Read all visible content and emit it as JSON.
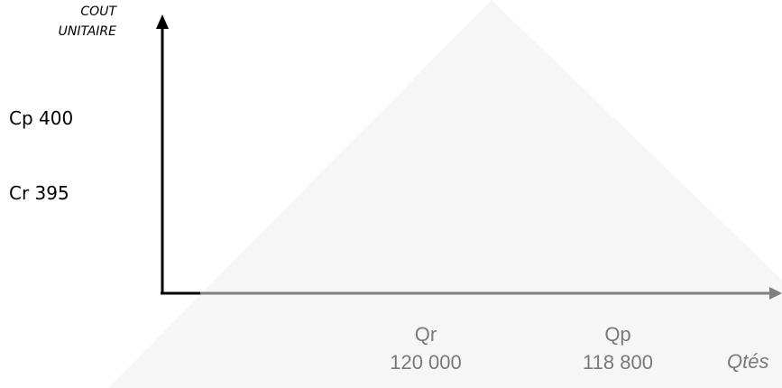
{
  "y_axis": {
    "label_line1": "COUT",
    "label_line2": "UNITAIRE",
    "ticks": [
      {
        "name": "Cp",
        "value": "400",
        "text": "Cp 400"
      },
      {
        "name": "Cr",
        "value": "395",
        "text": "Cr 395"
      }
    ]
  },
  "x_axis": {
    "ticks": [
      {
        "name": "Qr",
        "value": "120 000"
      },
      {
        "name": "Qp",
        "value": "118 800"
      }
    ],
    "unit_label": "Qtés"
  },
  "colors": {
    "axis_black": "#000000",
    "axis_grey": "#7f7f7f",
    "text_grey": "#7a7a7a",
    "watermark": "#f6f6f6"
  }
}
